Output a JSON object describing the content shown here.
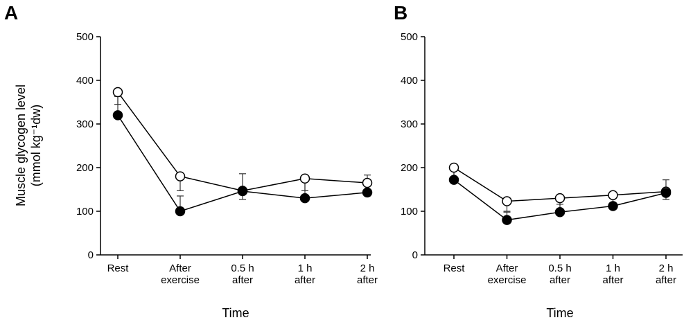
{
  "chart_data": [
    {
      "type": "line",
      "panel": "A",
      "categories": [
        "Rest",
        "After exercise",
        "0.5 h after",
        "1 h after",
        "2 h after"
      ],
      "category_lines": [
        [
          "Rest"
        ],
        [
          "After",
          "exercise"
        ],
        [
          "0.5 h",
          "after"
        ],
        [
          "1 h",
          "after"
        ],
        [
          "2 h",
          "after"
        ]
      ],
      "series": [
        {
          "marker": "open-circle",
          "values": [
            373,
            180,
            147,
            175,
            165
          ],
          "errors": [
            28,
            33,
            20,
            28,
            30
          ]
        },
        {
          "marker": "filled-circle",
          "values": [
            320,
            100,
            146,
            130,
            143
          ],
          "errors": [
            43,
            35,
            40,
            40,
            40
          ]
        }
      ],
      "ylim": [
        0,
        500
      ],
      "yticks": [
        0,
        100,
        200,
        300,
        400,
        500
      ],
      "xlabel": "Time",
      "ylabel_lines": [
        "Muscle glycogen level",
        "(mmol kg⁻¹dw)"
      ]
    },
    {
      "type": "line",
      "panel": "B",
      "categories": [
        "Rest",
        "After exercise",
        "0.5 h after",
        "1 h after",
        "2 h after"
      ],
      "category_lines": [
        [
          "Rest"
        ],
        [
          "After",
          "exercise"
        ],
        [
          "0.5 h",
          "after"
        ],
        [
          "1 h",
          "after"
        ],
        [
          "2 h",
          "after"
        ]
      ],
      "series": [
        {
          "marker": "open-circle",
          "values": [
            200,
            123,
            130,
            137,
            145
          ],
          "errors": [
            23,
            23,
            25,
            17,
            18
          ]
        },
        {
          "marker": "filled-circle",
          "values": [
            172,
            80,
            98,
            112,
            142
          ],
          "errors": [
            30,
            18,
            18,
            23,
            30
          ]
        }
      ],
      "ylim": [
        0,
        500
      ],
      "yticks": [
        0,
        100,
        200,
        300,
        400,
        500
      ],
      "xlabel": "Time",
      "ylabel_lines": []
    }
  ]
}
